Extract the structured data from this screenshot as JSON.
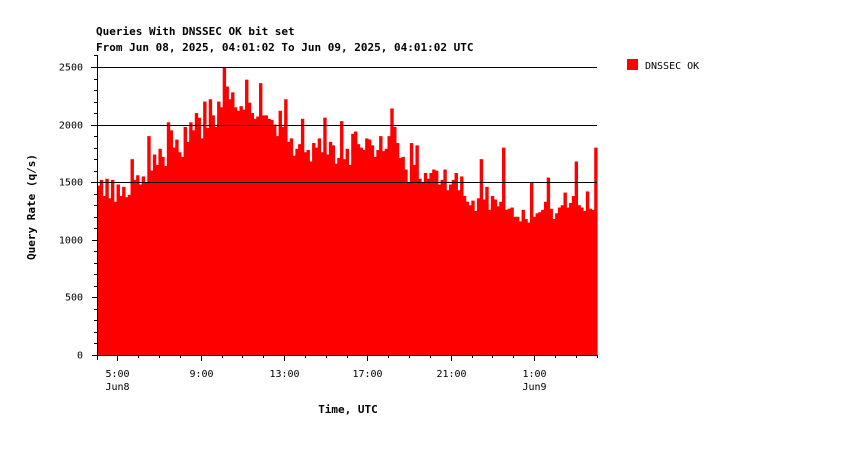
{
  "chart_data": {
    "type": "bar",
    "title": "Queries With DNSSEC OK bit set",
    "subtitle": "From Jun 08, 2025, 04:01:02 To Jun 09, 2025, 04:01:02 UTC",
    "xlabel": "Time, UTC",
    "ylabel": "Query Rate (q/s)",
    "ylim": [
      0,
      2700
    ],
    "yticks": [
      0,
      500,
      1000,
      1500,
      2000,
      2500
    ],
    "ytick_labels": [
      "0",
      "500",
      "1000",
      "1500",
      "2000",
      "2500"
    ],
    "gridlines": [
      1500,
      2000,
      2500
    ],
    "x_start_hour": 4.017,
    "x_end_hour": 28.017,
    "xticks": [
      {
        "hour": 5,
        "label": "5:00",
        "sublabel": "Jun8"
      },
      {
        "hour": 9,
        "label": "9:00",
        "sublabel": ""
      },
      {
        "hour": 13,
        "label": "13:00",
        "sublabel": ""
      },
      {
        "hour": 17,
        "label": "17:00",
        "sublabel": ""
      },
      {
        "hour": 21,
        "label": "21:00",
        "sublabel": ""
      },
      {
        "hour": 25,
        "label": "1:00",
        "sublabel": "Jun9"
      }
    ],
    "legend": {
      "placement": "right"
    },
    "series": [
      {
        "name": "DNSSEC OK",
        "color": "#ff0000",
        "values": [
          1470,
          1520,
          1380,
          1530,
          1360,
          1520,
          1330,
          1480,
          1380,
          1460,
          1370,
          1390,
          1700,
          1520,
          1560,
          1480,
          1550,
          1500,
          1900,
          1600,
          1740,
          1650,
          1790,
          1720,
          1640,
          2020,
          1950,
          1800,
          1870,
          1760,
          1720,
          1980,
          1850,
          2020,
          1950,
          2100,
          2060,
          1880,
          2200,
          1970,
          2220,
          2080,
          1980,
          2200,
          2150,
          2500,
          2330,
          2220,
          2280,
          2150,
          2120,
          2160,
          2130,
          2390,
          2190,
          2100,
          2050,
          2070,
          2360,
          2080,
          2080,
          2050,
          2040,
          2000,
          1900,
          2120,
          1980,
          2220,
          1850,
          1880,
          1730,
          1790,
          1830,
          2050,
          1760,
          1780,
          1680,
          1840,
          1800,
          1880,
          1760,
          2060,
          1740,
          1850,
          1820,
          1660,
          1710,
          2030,
          1700,
          1790,
          1650,
          1920,
          1940,
          1830,
          1800,
          1780,
          1880,
          1870,
          1820,
          1720,
          1780,
          1900,
          1770,
          1790,
          1900,
          2140,
          1980,
          1840,
          1710,
          1720,
          1610,
          1500,
          1840,
          1650,
          1820,
          1530,
          1500,
          1580,
          1530,
          1580,
          1610,
          1600,
          1480,
          1520,
          1610,
          1430,
          1480,
          1520,
          1580,
          1430,
          1550,
          1380,
          1330,
          1300,
          1340,
          1250,
          1360,
          1700,
          1350,
          1460,
          1260,
          1380,
          1350,
          1290,
          1330,
          1800,
          1260,
          1270,
          1280,
          1200,
          1200,
          1160,
          1260,
          1180,
          1150,
          1500,
          1200,
          1230,
          1240,
          1260,
          1330,
          1540,
          1270,
          1180,
          1230,
          1280,
          1300,
          1410,
          1280,
          1320,
          1380,
          1680,
          1300,
          1280,
          1250,
          1420,
          1270,
          1260,
          1800
        ]
      }
    ]
  }
}
